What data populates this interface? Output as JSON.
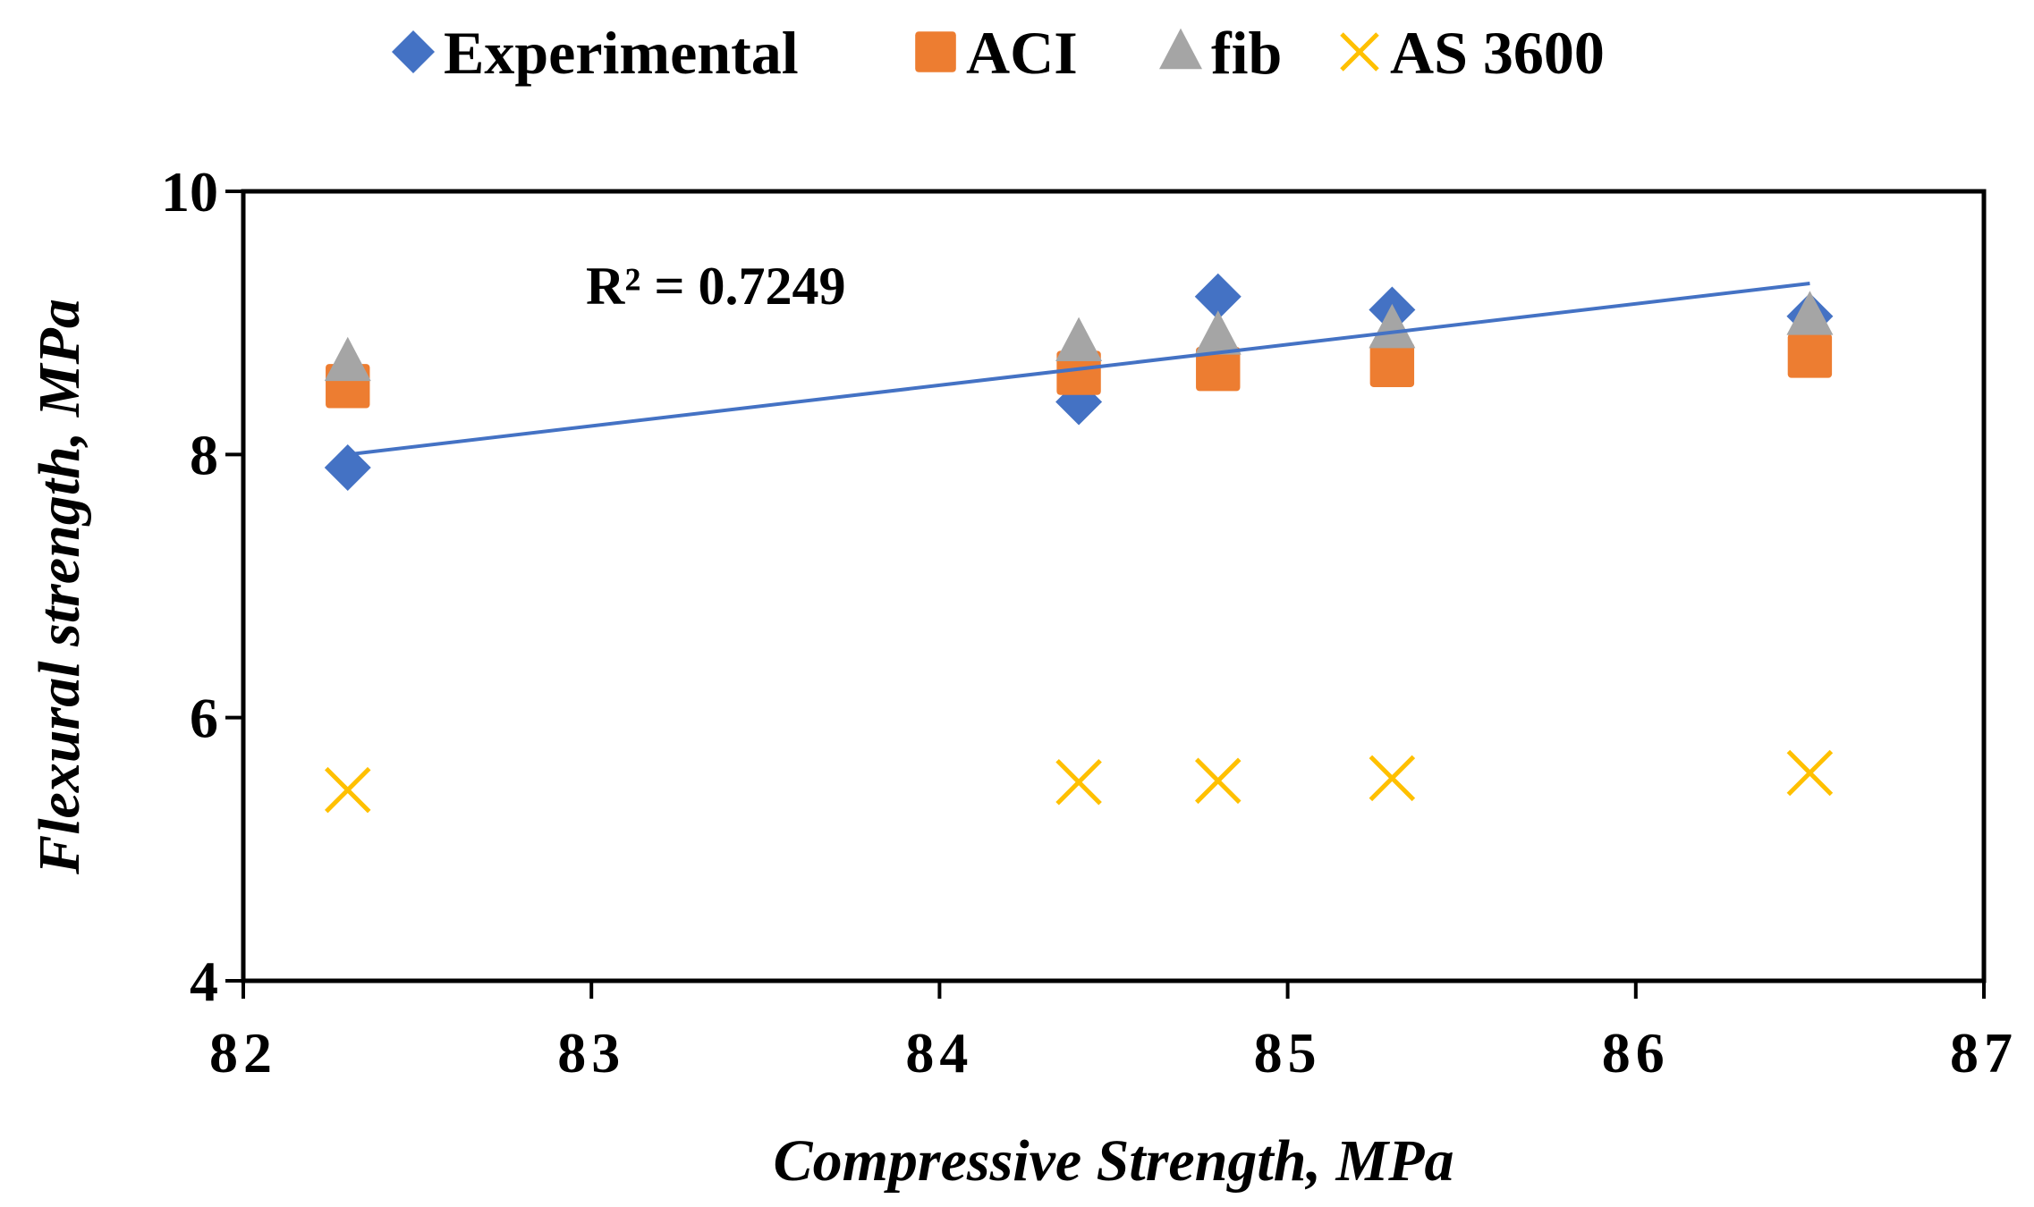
{
  "chart_data": {
    "type": "scatter",
    "title": "",
    "xlabel": "Compressive Strength, MPa",
    "ylabel": "Flexural strength, MPa",
    "xlim": [
      82,
      87
    ],
    "ylim": [
      4,
      10
    ],
    "x_ticks": [
      "82",
      "83",
      "84",
      "85",
      "86",
      "87"
    ],
    "y_ticks": [
      "4",
      "6",
      "8",
      "10"
    ],
    "x_tick_values": [
      82,
      83,
      84,
      85,
      86,
      87
    ],
    "y_tick_values": [
      4,
      6,
      8,
      10
    ],
    "grid": false,
    "legend_position": "top",
    "series": [
      {
        "name": "Experimental",
        "marker": "diamond",
        "color": "#4472C4",
        "x": [
          82.3,
          84.4,
          84.8,
          85.3,
          86.5
        ],
        "y": [
          7.9,
          8.4,
          9.2,
          9.1,
          9.05
        ]
      },
      {
        "name": "ACI",
        "marker": "square",
        "color": "#ED7D31",
        "x": [
          82.3,
          84.4,
          84.8,
          85.3,
          86.5
        ],
        "y": [
          8.52,
          8.62,
          8.65,
          8.68,
          8.75
        ]
      },
      {
        "name": "fib",
        "marker": "triangle",
        "color": "#A5A5A5",
        "x": [
          82.3,
          84.4,
          84.8,
          85.3,
          86.5
        ],
        "y": [
          8.7,
          8.85,
          8.9,
          8.95,
          9.05
        ]
      },
      {
        "name": "AS 3600",
        "marker": "x",
        "color": "#FFC000",
        "x": [
          82.3,
          84.4,
          84.8,
          85.3,
          86.5
        ],
        "y": [
          5.45,
          5.51,
          5.52,
          5.54,
          5.58
        ]
      }
    ],
    "trendline": {
      "series": "Experimental",
      "type": "linear",
      "color": "#4472C4",
      "x": [
        82.3,
        86.5
      ],
      "y": [
        8.0,
        9.3
      ],
      "label": "R² = 0.7249"
    }
  }
}
